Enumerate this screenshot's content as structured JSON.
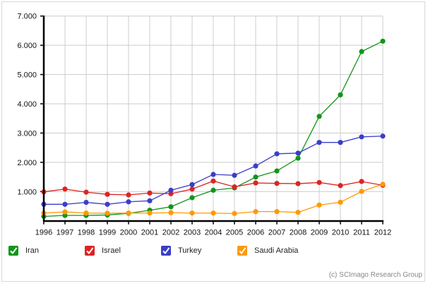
{
  "chart_data": {
    "type": "line",
    "title": "",
    "xlabel": "",
    "ylabel": "",
    "ylim": [
      0,
      7000
    ],
    "yticks": [
      "7.000",
      "6.000",
      "5.000",
      "4.000",
      "3.000",
      "2.000",
      "1.000"
    ],
    "ytick_values": [
      7000,
      6000,
      5000,
      4000,
      3000,
      2000,
      1000
    ],
    "grid": true,
    "legend_position": "bottom",
    "x": [
      "1996",
      "1997",
      "1998",
      "1999",
      "2000",
      "2001",
      "2002",
      "2003",
      "2004",
      "2005",
      "2006",
      "2007",
      "2008",
      "2009",
      "2010",
      "2011",
      "2012"
    ],
    "series": [
      {
        "name": "Iran",
        "color": "#109618",
        "values": [
          150,
          185,
          185,
          200,
          255,
          360,
          480,
          790,
          1045,
          1125,
          1495,
          1705,
          2140,
          3570,
          4305,
          5785,
          6140
        ]
      },
      {
        "name": "Israel",
        "color": "#dc2424",
        "values": [
          990,
          1085,
          980,
          905,
          885,
          950,
          925,
          1085,
          1360,
          1160,
          1295,
          1280,
          1270,
          1310,
          1205,
          1345,
          1215
        ]
      },
      {
        "name": "Turkey",
        "color": "#3b3ec9",
        "values": [
          565,
          565,
          630,
          565,
          650,
          685,
          1045,
          1240,
          1585,
          1555,
          1875,
          2290,
          2315,
          2680,
          2680,
          2870,
          2895
        ]
      },
      {
        "name": "Saudi Arabia",
        "color": "#ff9900",
        "values": [
          265,
          305,
          265,
          260,
          265,
          265,
          280,
          265,
          265,
          250,
          315,
          315,
          290,
          540,
          635,
          1005,
          1250
        ]
      }
    ]
  },
  "credit": "(c) SCImago Research Group"
}
